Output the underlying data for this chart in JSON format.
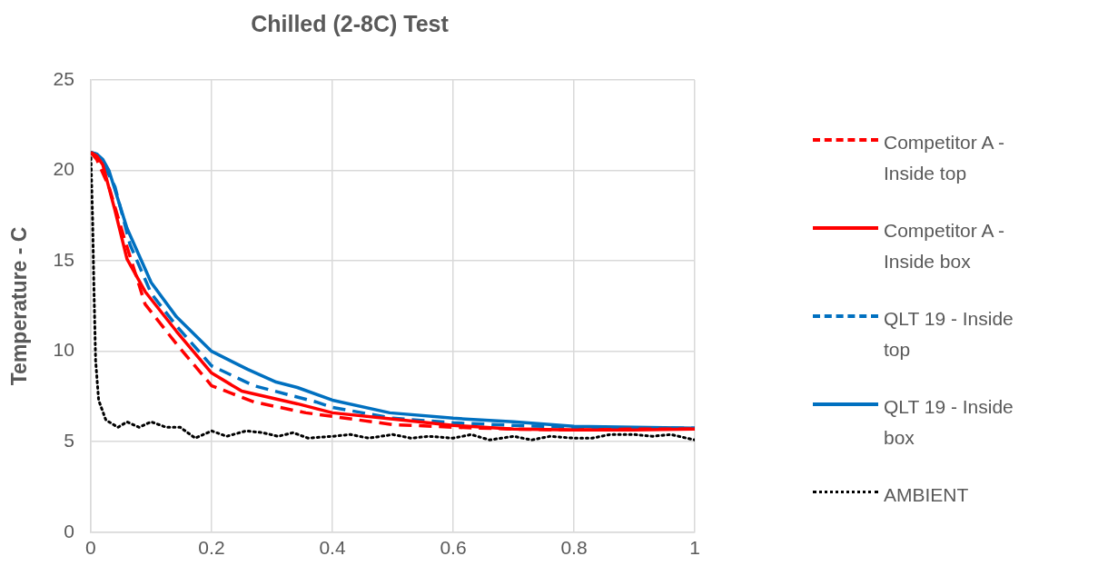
{
  "chart_data": {
    "type": "line",
    "title": "Chilled (2-8C) Test",
    "ylabel": "Temperature - C",
    "xlim": [
      0,
      1
    ],
    "xticks": [
      0,
      0.2,
      0.4,
      0.6,
      0.8,
      1
    ],
    "ylim": [
      0,
      25
    ],
    "yticks": [
      0,
      5,
      10,
      15,
      20,
      25
    ],
    "grid": true,
    "legend": "right",
    "marker": "none",
    "series": [
      {
        "name": "Competitor A - Inside top",
        "color": "#ff0000",
        "line_style": "dashed",
        "x": [
          0,
          0.01,
          0.03,
          0.055,
          0.09,
          0.142,
          0.2,
          0.27,
          0.356,
          0.4,
          0.5,
          0.6,
          0.7,
          0.8,
          0.9,
          1
        ],
        "values": [
          21,
          20.6,
          19.1,
          16.3,
          12.6,
          10.4,
          8.1,
          7.2,
          6.6,
          6.4,
          5.95,
          5.8,
          5.7,
          5.65,
          5.7,
          5.7
        ]
      },
      {
        "name": "Competitor A - Inside box",
        "color": "#ff0000",
        "line_style": "solid",
        "x": [
          0,
          0.01,
          0.02,
          0.04,
          0.06,
          0.09,
          0.142,
          0.2,
          0.25,
          0.342,
          0.4,
          0.5,
          0.6,
          0.7,
          0.8,
          0.9,
          1
        ],
        "values": [
          21,
          20.8,
          20.3,
          17.8,
          15.1,
          13.3,
          11.1,
          8.8,
          7.8,
          7.1,
          6.6,
          6.25,
          5.9,
          5.7,
          5.65,
          5.65,
          5.7
        ]
      },
      {
        "name": "QLT 19 - Inside top",
        "color": "#0070c0",
        "line_style": "dashed",
        "x": [
          0,
          0.01,
          0.02,
          0.04,
          0.065,
          0.1,
          0.142,
          0.2,
          0.27,
          0.373,
          0.4,
          0.5,
          0.6,
          0.7,
          0.8,
          0.9,
          1
        ],
        "values": [
          21,
          20.9,
          20.4,
          19.1,
          15.9,
          13.2,
          11.4,
          9.2,
          8.1,
          7.2,
          6.9,
          6.3,
          6.05,
          5.9,
          5.8,
          5.75,
          5.75
        ]
      },
      {
        "name": "QLT 19 - Inside box",
        "color": "#0070c0",
        "line_style": "solid",
        "x": [
          0,
          0.01,
          0.02,
          0.03,
          0.06,
          0.1,
          0.142,
          0.2,
          0.26,
          0.307,
          0.342,
          0.4,
          0.495,
          0.6,
          0.7,
          0.8,
          0.9,
          1
        ],
        "values": [
          21,
          20.9,
          20.6,
          20,
          16.8,
          13.8,
          11.9,
          10,
          9,
          8.3,
          8,
          7.3,
          6.6,
          6.3,
          6.1,
          5.85,
          5.8,
          5.75
        ]
      },
      {
        "name": "AMBIENT",
        "color": "#000000",
        "line_style": "dotted",
        "x": [
          0,
          0.003,
          0.005,
          0.008,
          0.013,
          0.025,
          0.045,
          0.06,
          0.08,
          0.1,
          0.125,
          0.148,
          0.173,
          0.2,
          0.225,
          0.257,
          0.285,
          0.31,
          0.335,
          0.36,
          0.4,
          0.43,
          0.46,
          0.5,
          0.53,
          0.56,
          0.6,
          0.63,
          0.66,
          0.7,
          0.73,
          0.76,
          0.8,
          0.83,
          0.86,
          0.9,
          0.93,
          0.96,
          1
        ],
        "values": [
          21,
          17.3,
          13.8,
          9.5,
          7.3,
          6.2,
          5.8,
          6.1,
          5.8,
          6.1,
          5.8,
          5.8,
          5.2,
          5.6,
          5.3,
          5.6,
          5.5,
          5.3,
          5.5,
          5.2,
          5.3,
          5.4,
          5.2,
          5.4,
          5.2,
          5.3,
          5.2,
          5.4,
          5.1,
          5.3,
          5.1,
          5.3,
          5.2,
          5.2,
          5.4,
          5.4,
          5.3,
          5.4,
          5.1
        ]
      }
    ]
  }
}
